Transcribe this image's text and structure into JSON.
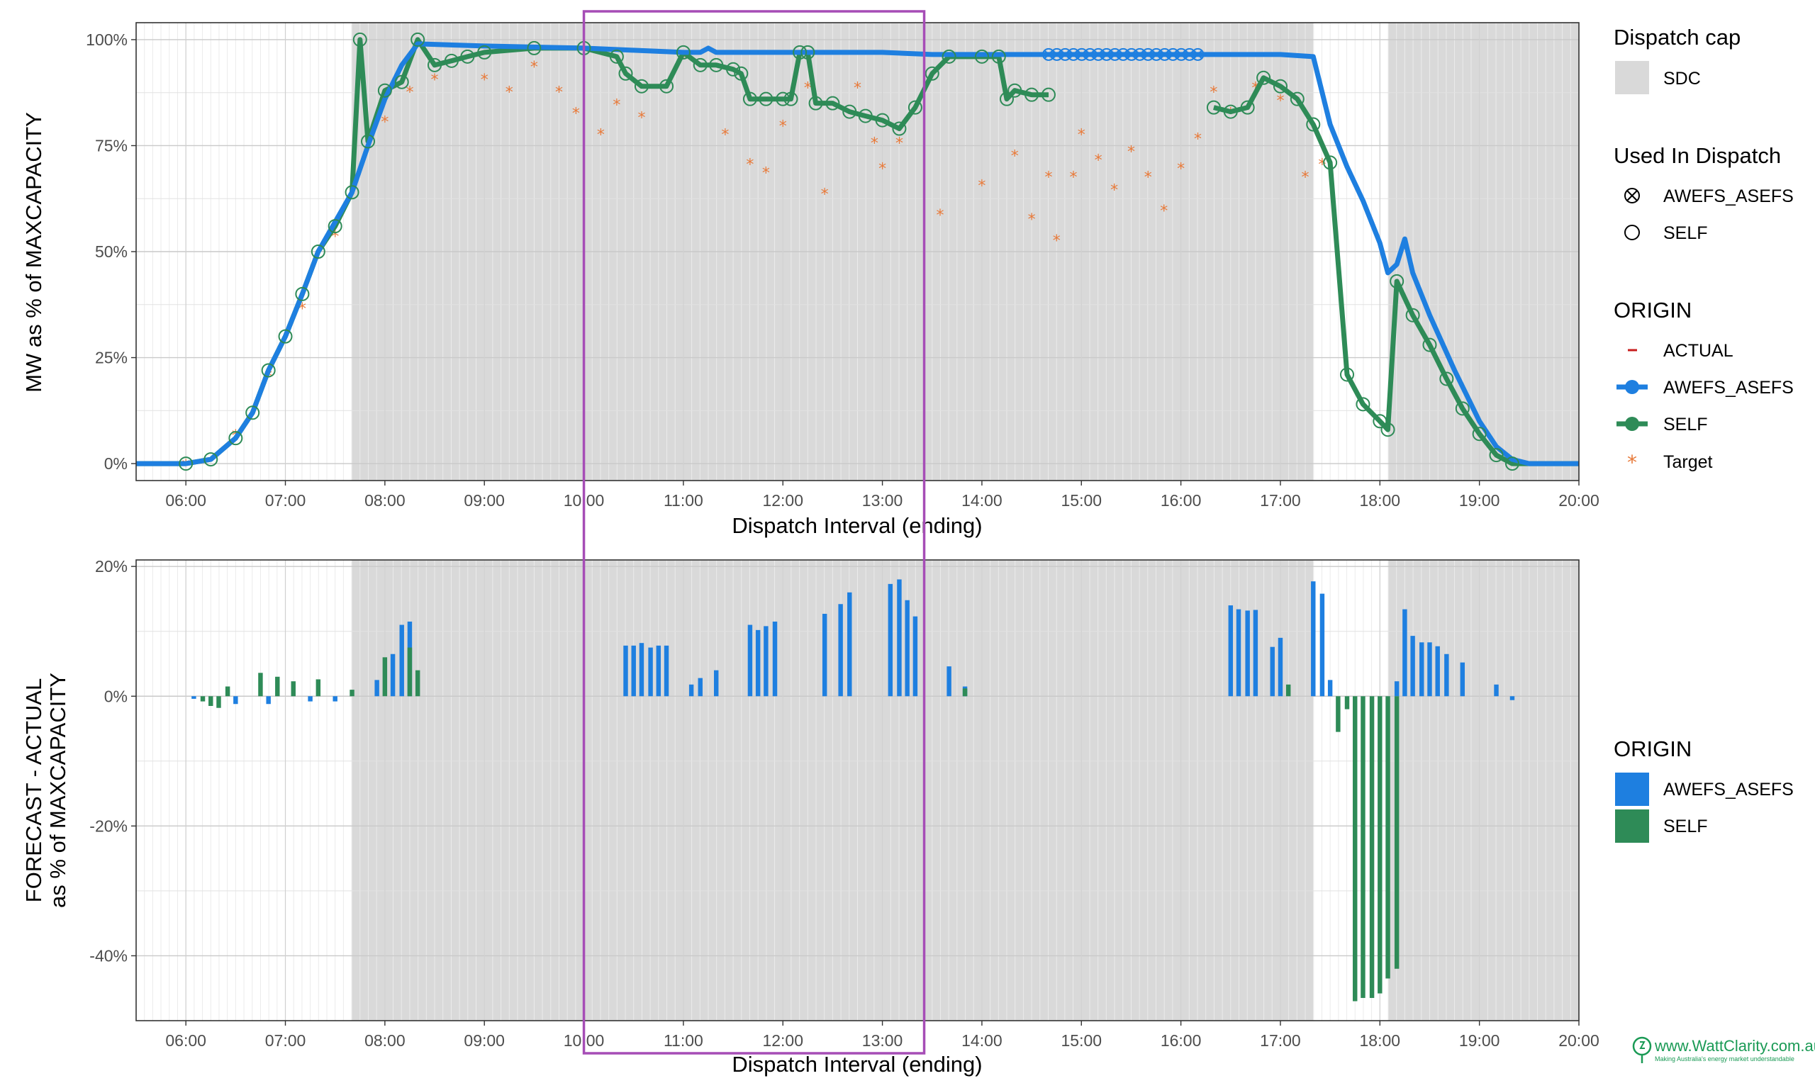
{
  "colors": {
    "awefs": "#1e7fe0",
    "self": "#2e8b57",
    "actual": "#c81e1e",
    "target": "#e87a3a",
    "sdc": "#d9d9d9",
    "highlight": "#a64db6"
  },
  "top_panel": {
    "ylabel": "MW as % of MAXCAPACITY",
    "xlabel": "Dispatch Interval (ending)",
    "ytick_labels": [
      "0%",
      "25%",
      "50%",
      "75%",
      "100%"
    ],
    "xtick_labels": [
      "06:00",
      "07:00",
      "08:00",
      "09:00",
      "10:00",
      "11:00",
      "12:00",
      "13:00",
      "14:00",
      "15:00",
      "16:00",
      "17:00",
      "18:00",
      "19:00",
      "20:00"
    ]
  },
  "bottom_panel": {
    "ylabel_line1": "FORECAST - ACTUAL",
    "ylabel_line2": "as % of MAXCAPACITY",
    "xlabel": "Dispatch Interval (ending)",
    "ytick_labels": [
      "-40%",
      "-20%",
      "0%",
      "20%"
    ],
    "xtick_labels": [
      "06:00",
      "07:00",
      "08:00",
      "09:00",
      "10:00",
      "11:00",
      "12:00",
      "13:00",
      "14:00",
      "15:00",
      "16:00",
      "17:00",
      "18:00",
      "19:00",
      "20:00"
    ]
  },
  "legend": {
    "dispatch_cap_title": "Dispatch cap",
    "dispatch_cap_item": "SDC",
    "used_title": "Used In Dispatch",
    "used_items": [
      "AWEFS_ASEFS",
      "SELF"
    ],
    "origin_title": "ORIGIN",
    "origin_items": [
      "ACTUAL",
      "AWEFS_ASEFS",
      "SELF",
      "Target"
    ],
    "origin2_title": "ORIGIN",
    "origin2_items": [
      "AWEFS_ASEFS",
      "SELF"
    ]
  },
  "logo": {
    "line1": "www.WattClarity.com.au",
    "line2": "Making Australia's energy market understandable"
  },
  "chart_data": [
    {
      "type": "line",
      "xlabel": "Dispatch Interval (ending)",
      "ylabel": "MW as % of MAXCAPACITY",
      "x_unit": "time of day (hours)",
      "xlim": [
        5.5,
        20.0
      ],
      "ylim": [
        -4,
        104
      ],
      "sdc_shaded_periods": [
        [
          7.67,
          17.33
        ],
        [
          18.08,
          20.0
        ]
      ],
      "highlight_box_x": [
        10.0,
        13.42
      ],
      "series": [
        {
          "name": "AWEFS_ASEFS",
          "points": [
            [
              5.5,
              0
            ],
            [
              6.0,
              0
            ],
            [
              6.25,
              1
            ],
            [
              6.5,
              6
            ],
            [
              6.67,
              12
            ],
            [
              6.83,
              22
            ],
            [
              7.0,
              30
            ],
            [
              7.17,
              40
            ],
            [
              7.33,
              50
            ],
            [
              7.5,
              57
            ],
            [
              7.67,
              64
            ],
            [
              7.83,
              75
            ],
            [
              8.0,
              86
            ],
            [
              8.17,
              94
            ],
            [
              8.33,
              99
            ],
            [
              9.0,
              98.5
            ],
            [
              10.0,
              98
            ],
            [
              10.5,
              97.5
            ],
            [
              11.0,
              97
            ],
            [
              11.17,
              97
            ],
            [
              11.25,
              98
            ],
            [
              11.33,
              97
            ],
            [
              12.0,
              97
            ],
            [
              13.0,
              97
            ],
            [
              13.5,
              96.5
            ],
            [
              14.0,
              96.5
            ],
            [
              16.0,
              96.5
            ],
            [
              17.0,
              96.5
            ],
            [
              17.33,
              96
            ],
            [
              17.5,
              80
            ],
            [
              17.67,
              70
            ],
            [
              17.83,
              62
            ],
            [
              18.0,
              52
            ],
            [
              18.08,
              45
            ],
            [
              18.17,
              47
            ],
            [
              18.25,
              53
            ],
            [
              18.33,
              45
            ],
            [
              18.5,
              35
            ],
            [
              18.75,
              22
            ],
            [
              19.0,
              10
            ],
            [
              19.17,
              4
            ],
            [
              19.33,
              1
            ],
            [
              19.5,
              0
            ],
            [
              20.0,
              0
            ]
          ]
        },
        {
          "name": "SELF",
          "points": [
            [
              5.5,
              0
            ],
            [
              6.0,
              0
            ],
            [
              6.25,
              1
            ],
            [
              6.5,
              6
            ],
            [
              6.67,
              12
            ],
            [
              6.83,
              22
            ],
            [
              7.0,
              30
            ],
            [
              7.17,
              40
            ],
            [
              7.33,
              50
            ],
            [
              7.5,
              56
            ],
            [
              7.67,
              64
            ],
            [
              7.75,
              100
            ],
            [
              7.83,
              76
            ],
            [
              8.0,
              88
            ],
            [
              8.17,
              90
            ],
            [
              8.33,
              100
            ],
            [
              8.5,
              94
            ],
            [
              8.67,
              95
            ],
            [
              8.83,
              96
            ],
            [
              9.0,
              97
            ],
            [
              9.5,
              98
            ],
            [
              10.0,
              98
            ],
            [
              10.33,
              96
            ],
            [
              10.42,
              92
            ],
            [
              10.58,
              89
            ],
            [
              10.83,
              89
            ],
            [
              11.0,
              97
            ],
            [
              11.17,
              94
            ],
            [
              11.33,
              94
            ],
            [
              11.5,
              93
            ],
            [
              11.58,
              92
            ],
            [
              11.67,
              86
            ],
            [
              11.83,
              86
            ],
            [
              12.0,
              86
            ],
            [
              12.08,
              86
            ],
            [
              12.17,
              97
            ],
            [
              12.25,
              97
            ],
            [
              12.33,
              85
            ],
            [
              12.5,
              85
            ],
            [
              12.67,
              83
            ],
            [
              12.83,
              82
            ],
            [
              13.0,
              81
            ],
            [
              13.17,
              79
            ],
            [
              13.33,
              84
            ],
            [
              13.5,
              92
            ],
            [
              13.67,
              96
            ],
            [
              14.0,
              96
            ],
            [
              14.17,
              96
            ],
            [
              14.25,
              86
            ],
            [
              14.33,
              88
            ],
            [
              14.5,
              87
            ],
            [
              14.67,
              87
            ]
          ]
        },
        {
          "name": "SELF (segment 2)",
          "points": [
            [
              16.33,
              84
            ],
            [
              16.5,
              83
            ],
            [
              16.67,
              84
            ],
            [
              16.83,
              91
            ],
            [
              17.0,
              89
            ],
            [
              17.17,
              86
            ],
            [
              17.33,
              80
            ],
            [
              17.5,
              71
            ],
            [
              17.67,
              21
            ],
            [
              17.83,
              14
            ],
            [
              18.0,
              10
            ],
            [
              18.08,
              8
            ],
            [
              18.17,
              43
            ],
            [
              18.33,
              35
            ],
            [
              18.5,
              28
            ],
            [
              18.67,
              20
            ],
            [
              18.83,
              13
            ],
            [
              19.0,
              7
            ],
            [
              19.17,
              2
            ],
            [
              19.33,
              0
            ],
            [
              20.0,
              0
            ]
          ]
        },
        {
          "name": "Target",
          "points": [
            [
              6.0,
              0
            ],
            [
              6.5,
              7
            ],
            [
              6.83,
              21
            ],
            [
              7.17,
              37
            ],
            [
              7.5,
              54
            ],
            [
              7.75,
              91
            ],
            [
              8.0,
              81
            ],
            [
              8.25,
              88
            ],
            [
              8.5,
              91
            ],
            [
              9.0,
              91
            ],
            [
              9.25,
              88
            ],
            [
              9.5,
              94
            ],
            [
              9.75,
              88
            ],
            [
              9.92,
              83
            ],
            [
              10.17,
              78
            ],
            [
              10.33,
              85
            ],
            [
              10.58,
              82
            ],
            [
              11.0,
              96
            ],
            [
              11.42,
              78
            ],
            [
              11.67,
              71
            ],
            [
              11.83,
              69
            ],
            [
              12.0,
              80
            ],
            [
              12.25,
              89
            ],
            [
              12.42,
              64
            ],
            [
              12.75,
              89
            ],
            [
              12.92,
              76
            ],
            [
              13.0,
              70
            ],
            [
              13.17,
              76
            ],
            [
              13.58,
              59
            ],
            [
              14.0,
              66
            ],
            [
              14.33,
              73
            ],
            [
              14.5,
              58
            ],
            [
              14.67,
              68
            ],
            [
              14.75,
              53
            ],
            [
              14.92,
              68
            ],
            [
              15.0,
              78
            ],
            [
              15.17,
              72
            ],
            [
              15.33,
              65
            ],
            [
              15.5,
              74
            ],
            [
              15.67,
              68
            ],
            [
              15.83,
              60
            ],
            [
              16.0,
              70
            ],
            [
              16.17,
              77
            ],
            [
              16.33,
              88
            ],
            [
              16.5,
              83
            ],
            [
              16.75,
              89
            ],
            [
              17.0,
              86
            ],
            [
              17.25,
              68
            ],
            [
              17.42,
              71
            ]
          ]
        }
      ]
    },
    {
      "type": "bar",
      "xlabel": "Dispatch Interval (ending)",
      "ylabel": "FORECAST - ACTUAL as % of MAXCAPACITY",
      "x_unit": "time of day (hours)",
      "xlim": [
        5.5,
        20.0
      ],
      "ylim": [
        -50,
        21
      ],
      "series": [
        {
          "name": "AWEFS_ASEFS",
          "points": [
            [
              6.08,
              -0.4
            ],
            [
              6.5,
              -1.2
            ],
            [
              6.83,
              -1.2
            ],
            [
              7.25,
              -0.8
            ],
            [
              7.5,
              -0.8
            ],
            [
              7.92,
              2.5
            ],
            [
              8.08,
              6.5
            ],
            [
              8.17,
              11
            ],
            [
              8.25,
              11.5
            ],
            [
              10.42,
              7.8
            ],
            [
              10.5,
              7.8
            ],
            [
              10.58,
              8.2
            ],
            [
              10.67,
              7.5
            ],
            [
              10.75,
              7.8
            ],
            [
              10.83,
              7.8
            ],
            [
              11.08,
              1.8
            ],
            [
              11.17,
              2.8
            ],
            [
              11.33,
              4
            ],
            [
              11.67,
              11
            ],
            [
              11.75,
              10.2
            ],
            [
              11.83,
              10.8
            ],
            [
              11.92,
              11.5
            ],
            [
              12.42,
              12.7
            ],
            [
              12.58,
              14.2
            ],
            [
              12.67,
              16
            ],
            [
              13.08,
              17.3
            ],
            [
              13.17,
              18
            ],
            [
              13.25,
              14.8
            ],
            [
              13.33,
              12.3
            ],
            [
              13.67,
              4.6
            ],
            [
              13.83,
              1.5
            ],
            [
              16.5,
              14
            ],
            [
              16.58,
              13.4
            ],
            [
              16.67,
              13.2
            ],
            [
              16.75,
              13.3
            ],
            [
              16.92,
              7.6
            ],
            [
              17.0,
              9
            ],
            [
              17.33,
              17.7
            ],
            [
              17.42,
              15.8
            ],
            [
              17.5,
              2.5
            ],
            [
              18.17,
              2.3
            ],
            [
              18.25,
              13.4
            ],
            [
              18.33,
              9.3
            ],
            [
              18.42,
              8.3
            ],
            [
              18.5,
              8.3
            ],
            [
              18.58,
              7.7
            ],
            [
              18.67,
              6.5
            ],
            [
              18.83,
              5.2
            ],
            [
              19.17,
              1.8
            ],
            [
              19.33,
              -0.6
            ]
          ]
        },
        {
          "name": "SELF",
          "points": [
            [
              6.17,
              -0.8
            ],
            [
              6.25,
              -1.5
            ],
            [
              6.33,
              -1.8
            ],
            [
              6.42,
              1.5
            ],
            [
              6.75,
              3.6
            ],
            [
              6.92,
              3
            ],
            [
              7.08,
              2.3
            ],
            [
              7.33,
              2.6
            ],
            [
              7.67,
              1
            ],
            [
              8.0,
              6
            ],
            [
              8.25,
              7.5
            ],
            [
              8.33,
              4
            ],
            [
              13.83,
              1.2
            ],
            [
              17.08,
              1.8
            ],
            [
              17.58,
              -5.5
            ],
            [
              17.67,
              -2
            ],
            [
              17.75,
              -47
            ],
            [
              17.83,
              -46.5
            ],
            [
              17.92,
              -46.5
            ],
            [
              18.0,
              -45.8
            ],
            [
              18.08,
              -43.5
            ],
            [
              18.17,
              -42
            ]
          ]
        }
      ]
    }
  ]
}
